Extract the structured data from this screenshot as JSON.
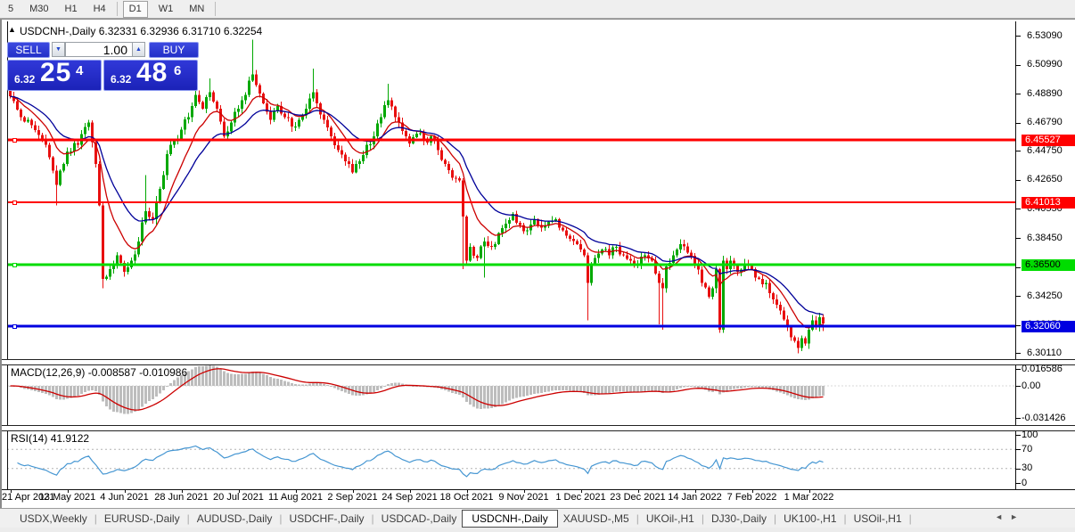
{
  "toolbar": {
    "timeframes": [
      "5",
      "M30",
      "H1",
      "H4",
      "D1",
      "W1",
      "MN"
    ],
    "active": "D1"
  },
  "chart_header": {
    "symbol": "USDCNH-,Daily",
    "ohlc": "6.32331 6.32936 6.31710 6.32254"
  },
  "trade_panel": {
    "sell_label": "SELL",
    "buy_label": "BUY",
    "volume": "1.00",
    "sell_price_prefix": "6.32",
    "sell_price_big": "25",
    "sell_price_sup": "4",
    "buy_price_prefix": "6.32",
    "buy_price_big": "48",
    "buy_price_sup": "6"
  },
  "price_axis": {
    "tick_labels": [
      "6.53090",
      "6.50990",
      "6.48890",
      "6.46790",
      "6.44750",
      "6.42650",
      "6.40550",
      "6.38450",
      "6.36350",
      "6.34250",
      "6.32150",
      "6.30110"
    ]
  },
  "dates": [
    "21 Apr 2021",
    "13 May 2021",
    "4 Jun 2021",
    "28 Jun 2021",
    "20 Jul 2021",
    "11 Aug 2021",
    "2 Sep 2021",
    "24 Sep 2021",
    "18 Oct 2021",
    "9 Nov 2021",
    "1 Dec 2021",
    "23 Dec 2021",
    "14 Jan 2022",
    "7 Feb 2022",
    "1 Mar 2022"
  ],
  "indicators": {
    "macd": {
      "name": "MACD(12,26,9)",
      "values": "-0.008587 -0.010986",
      "axis_labels": [
        "0.016586",
        "0.00",
        "-0.031426"
      ],
      "histogram_color": "#bdbdbd",
      "signal_color": "#cc0000"
    },
    "rsi": {
      "name": "RSI(14)",
      "value": "41.9122",
      "axis_labels": [
        "100",
        "70",
        "30",
        "0"
      ],
      "levels": [
        70,
        30
      ],
      "line_color": "#4596d2"
    }
  },
  "tabs": {
    "items": [
      "USDX,Weekly",
      "EURUSD-,Daily",
      "AUDUSD-,Daily",
      "USDCHF-,Daily",
      "USDCAD-,Daily",
      "USDCNH-,Daily",
      "XAUUSD-,M5",
      "UKOil-,H1",
      "DJ30-,Daily",
      "UK100-,H1",
      "USOil-,H1"
    ],
    "active": "USDCNH-,Daily",
    "left_arrow": "◄",
    "right_arrow": "►"
  },
  "chart_data": {
    "type": "candlestick",
    "title": "USDCNH-,Daily",
    "timeframe": "Daily",
    "ohlc_last": {
      "open": 6.32331,
      "high": 6.32936,
      "low": 6.3171,
      "close": 6.32254
    },
    "price_range": [
      6.3011,
      6.5309
    ],
    "up_color": "#00a800",
    "down_color": "#e81010",
    "candle_count": 229,
    "close_anchors": [
      [
        0,
        6.487
      ],
      [
        3,
        6.472
      ],
      [
        6,
        6.466
      ],
      [
        10,
        6.452
      ],
      [
        13,
        6.423
      ],
      [
        16,
        6.447
      ],
      [
        19,
        6.452
      ],
      [
        22,
        6.468
      ],
      [
        24,
        6.438
      ],
      [
        25,
        6.408
      ],
      [
        26,
        6.355
      ],
      [
        28,
        6.362
      ],
      [
        30,
        6.372
      ],
      [
        32,
        6.36
      ],
      [
        34,
        6.368
      ],
      [
        36,
        6.382
      ],
      [
        38,
        6.404
      ],
      [
        40,
        6.398
      ],
      [
        42,
        6.42
      ],
      [
        44,
        6.445
      ],
      [
        46,
        6.455
      ],
      [
        48,
        6.463
      ],
      [
        50,
        6.472
      ],
      [
        52,
        6.488
      ],
      [
        54,
        6.478
      ],
      [
        56,
        6.49
      ],
      [
        58,
        6.478
      ],
      [
        60,
        6.458
      ],
      [
        62,
        6.468
      ],
      [
        64,
        6.478
      ],
      [
        66,
        6.488
      ],
      [
        68,
        6.503
      ],
      [
        69,
        6.495
      ],
      [
        71,
        6.482
      ],
      [
        73,
        6.47
      ],
      [
        75,
        6.48
      ],
      [
        77,
        6.472
      ],
      [
        79,
        6.465
      ],
      [
        81,
        6.47
      ],
      [
        83,
        6.478
      ],
      [
        85,
        6.49
      ],
      [
        86,
        6.482
      ],
      [
        88,
        6.47
      ],
      [
        90,
        6.458
      ],
      [
        92,
        6.448
      ],
      [
        94,
        6.44
      ],
      [
        96,
        6.432
      ],
      [
        98,
        6.44
      ],
      [
        100,
        6.452
      ],
      [
        102,
        6.458
      ],
      [
        104,
        6.472
      ],
      [
        106,
        6.484
      ],
      [
        108,
        6.472
      ],
      [
        110,
        6.462
      ],
      [
        112,
        6.453
      ],
      [
        114,
        6.46
      ],
      [
        116,
        6.455
      ],
      [
        118,
        6.458
      ],
      [
        120,
        6.448
      ],
      [
        122,
        6.438
      ],
      [
        124,
        6.428
      ],
      [
        126,
        6.426
      ],
      [
        127,
        6.4
      ],
      [
        128,
        6.368
      ],
      [
        129,
        6.378
      ],
      [
        131,
        6.37
      ],
      [
        133,
        6.382
      ],
      [
        135,
        6.378
      ],
      [
        137,
        6.388
      ],
      [
        139,
        6.395
      ],
      [
        141,
        6.402
      ],
      [
        143,
        6.394
      ],
      [
        145,
        6.39
      ],
      [
        147,
        6.398
      ],
      [
        149,
        6.392
      ],
      [
        151,
        6.396
      ],
      [
        153,
        6.398
      ],
      [
        155,
        6.39
      ],
      [
        157,
        6.384
      ],
      [
        159,
        6.38
      ],
      [
        161,
        6.372
      ],
      [
        162,
        6.352
      ],
      [
        163,
        6.366
      ],
      [
        164,
        6.37
      ],
      [
        166,
        6.376
      ],
      [
        168,
        6.372
      ],
      [
        170,
        6.378
      ],
      [
        172,
        6.372
      ],
      [
        174,
        6.368
      ],
      [
        176,
        6.365
      ],
      [
        178,
        6.372
      ],
      [
        180,
        6.368
      ],
      [
        182,
        6.352
      ],
      [
        183,
        6.348
      ],
      [
        184,
        6.364
      ],
      [
        186,
        6.372
      ],
      [
        188,
        6.38
      ],
      [
        190,
        6.374
      ],
      [
        192,
        6.366
      ],
      [
        194,
        6.352
      ],
      [
        196,
        6.342
      ],
      [
        197,
        6.348
      ],
      [
        198,
        6.362
      ],
      [
        199,
        6.318
      ],
      [
        200,
        6.368
      ],
      [
        201,
        6.362
      ],
      [
        202,
        6.368
      ],
      [
        204,
        6.36
      ],
      [
        206,
        6.366
      ],
      [
        208,
        6.362
      ],
      [
        210,
        6.355
      ],
      [
        212,
        6.352
      ],
      [
        214,
        6.34
      ],
      [
        216,
        6.332
      ],
      [
        218,
        6.32
      ],
      [
        220,
        6.31
      ],
      [
        221,
        6.305
      ],
      [
        222,
        6.312
      ],
      [
        223,
        6.308
      ],
      [
        224,
        6.318
      ],
      [
        225,
        6.325
      ],
      [
        226,
        6.32
      ],
      [
        227,
        6.327
      ],
      [
        228,
        6.3225
      ]
    ],
    "wick_overrides": {
      "13": {
        "l": 6.408
      },
      "26": {
        "l": 6.348
      },
      "38": {
        "h": 6.43
      },
      "52": {
        "h": 6.498
      },
      "56": {
        "h": 6.5
      },
      "68": {
        "h": 6.528
      },
      "85": {
        "h": 6.507
      },
      "106": {
        "h": 6.496
      },
      "127": {
        "l": 6.362
      },
      "133": {
        "l": 6.356
      },
      "162": {
        "l": 6.325
      },
      "182": {
        "l": 6.322
      },
      "183": {
        "l": 6.318
      },
      "199": {
        "l": 6.316
      },
      "221": {
        "l": 6.301
      },
      "228": {
        "h": 6.3294,
        "l": 6.3171
      }
    },
    "moving_averages": [
      {
        "name": "ma-fast",
        "period": 10,
        "color": "#cc0000"
      },
      {
        "name": "ma-slow",
        "period": 21,
        "color": "#000099"
      }
    ],
    "horizontal_lines": [
      {
        "price": 6.45527,
        "label": "6.45527",
        "color": "#ff0000",
        "thickness": 3,
        "label_text_color": "#ffffff"
      },
      {
        "price": 6.41013,
        "label": "6.41013",
        "color": "#ff0000",
        "thickness": 2,
        "label_text_color": "#ffffff"
      },
      {
        "price": 6.365,
        "label": "6.36500",
        "color": "#00dc00",
        "thickness": 3,
        "label_text_color": "#000000"
      },
      {
        "price": 6.3206,
        "label": "6.32060",
        "color": "#0000e0",
        "thickness": 3,
        "label_text_color": "#ffffff"
      }
    ]
  }
}
